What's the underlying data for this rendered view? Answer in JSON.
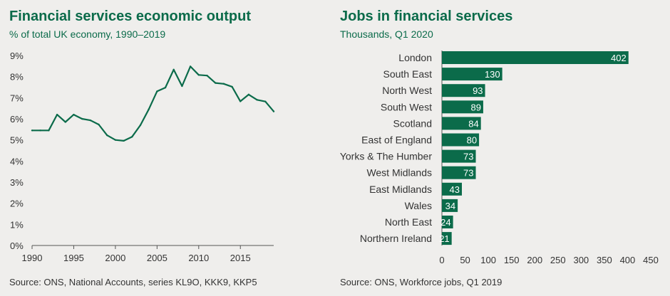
{
  "colors": {
    "accent": "#0b6b4a",
    "axis": "#555555",
    "grid": "#d2d2d2"
  },
  "chart_data": [
    {
      "type": "line",
      "title": "Financial services economic output",
      "subtitle": "% of total UK economy, 1990–2019",
      "source": "Source: ONS, National Accounts, series KL9O, KKK9, KKP5",
      "xlim": [
        1990,
        2019
      ],
      "ylim": [
        0,
        9
      ],
      "xticks": [
        1990,
        1995,
        2000,
        2005,
        2010,
        2015
      ],
      "yticks": [
        "0%",
        "1%",
        "2%",
        "3%",
        "4%",
        "5%",
        "6%",
        "7%",
        "8%",
        "9%"
      ],
      "grid": false,
      "series": [
        {
          "x": [
            1990,
            1991,
            1992,
            1993,
            1994,
            1995,
            1996,
            1997,
            1998,
            1999,
            2000,
            2001,
            2002,
            2003,
            2004,
            2005,
            2006,
            2007,
            2008,
            2009,
            2010,
            2011,
            2012,
            2013,
            2014,
            2015,
            2016,
            2017,
            2018,
            2019
          ],
          "values": [
            5.45,
            5.45,
            5.45,
            6.2,
            5.85,
            6.2,
            6.0,
            5.93,
            5.73,
            5.22,
            5.0,
            4.96,
            5.15,
            5.7,
            6.45,
            7.3,
            7.48,
            8.33,
            7.55,
            8.48,
            8.08,
            8.05,
            7.7,
            7.66,
            7.52,
            6.83,
            7.15,
            6.9,
            6.82,
            6.35
          ]
        }
      ]
    },
    {
      "type": "bar",
      "orientation": "horizontal",
      "title": "Jobs in financial services",
      "subtitle": "Thousands, Q1 2020",
      "source": "Source: ONS, Workforce jobs, Q1 2019",
      "categories": [
        "London",
        "South East",
        "North West",
        "South West",
        "Scotland",
        "East of England",
        "Yorks & The Humber",
        "West Midlands",
        "East Midlands",
        "Wales",
        "North East",
        "Northern Ireland"
      ],
      "values": [
        402,
        130,
        93,
        89,
        84,
        80,
        73,
        73,
        43,
        34,
        24,
        21
      ],
      "xlim": [
        0,
        450
      ],
      "xticks": [
        0,
        50,
        100,
        150,
        200,
        250,
        300,
        350,
        400,
        450
      ],
      "grid": false
    }
  ]
}
